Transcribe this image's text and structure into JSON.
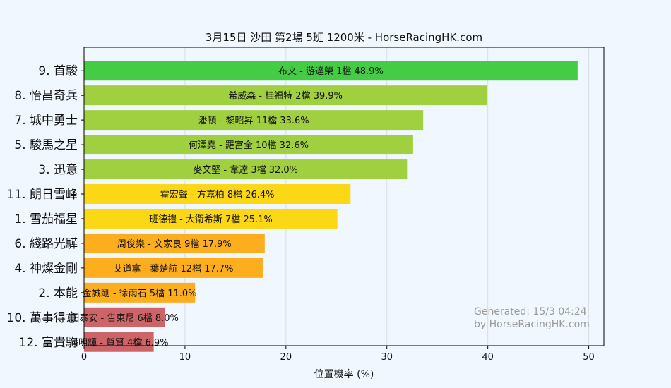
{
  "chart_data": {
    "type": "bar",
    "orientation": "horizontal",
    "title": "3月15日  沙田  第2場  5班  1200米 - HorseRacingHK.com",
    "xlabel": "位置機率 (%)",
    "ylabel": "",
    "xlim": [
      0,
      51.5
    ],
    "xticks": [
      0,
      10,
      20,
      30,
      40,
      50
    ],
    "grid": true,
    "categories": [
      "9. 首駿",
      "8. 怡昌奇兵",
      "7. 城中勇士",
      "5. 駿馬之星",
      "3. 迅意",
      "11. 朗日雪峰",
      "1. 雪茄福星",
      "6. 綫路光驊",
      "4. 神燦金剛",
      "2. 本能",
      "10. 萬事得意",
      "12. 富貴駒"
    ],
    "values": [
      48.9,
      39.9,
      33.6,
      32.6,
      32.0,
      26.4,
      25.1,
      17.9,
      17.7,
      11.0,
      8.0,
      6.9
    ],
    "labels": [
      "布文 - 游達榮 1檔  48.9%",
      "希威森 - 桂福特 2檔  39.9%",
      "潘頓 - 黎昭昇 11檔  33.6%",
      "何澤堯 - 羅富全 10檔  32.6%",
      "麥文堅 - 韋達 3檔  32.0%",
      "霍宏聲 - 方嘉柏 8檔  26.4%",
      "班德禮 - 大衛希斯 7檔  25.1%",
      "周俊樂 - 文家良 9檔  17.9%",
      "艾道拿 - 葉楚航 12檔  17.7%",
      "金誠剛 - 徐雨石 5檔  11.0%",
      "田泰安 - 告東尼 6檔  8.0%",
      "潘明輝 - 賀賢 4檔  6.9%"
    ],
    "colors": [
      "#44cc44",
      "#a0d040",
      "#a0d040",
      "#a0d040",
      "#a0d040",
      "#fcd716",
      "#fcd716",
      "#fcae1e",
      "#fcae1e",
      "#fcae1e",
      "#cd6468",
      "#cd6468"
    ],
    "watermark": [
      "Generated: 15/3 04:24",
      "by HorseRacingHK.com"
    ]
  }
}
